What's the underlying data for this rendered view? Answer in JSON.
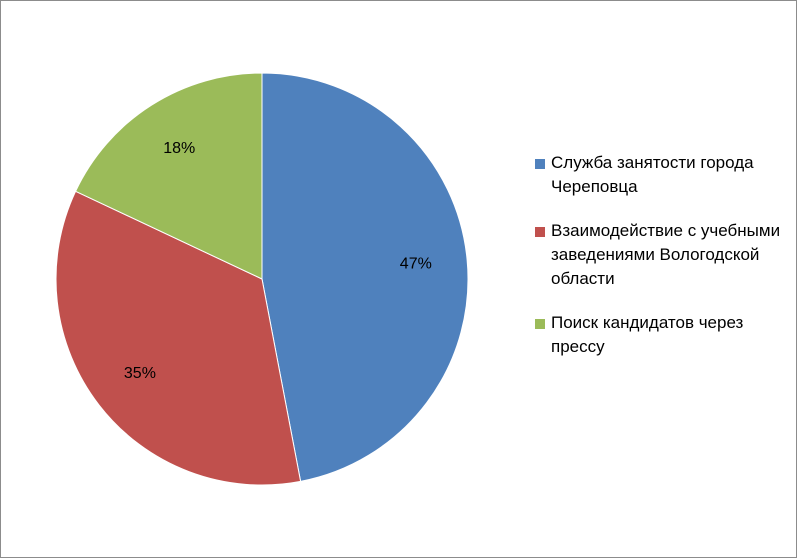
{
  "chart_data": {
    "type": "pie",
    "title": "",
    "categories": [
      "Служба занятости города Череповца",
      "Взаимодействие с учебными заведениями Вологодской области",
      "Поиск кандидатов через прессу"
    ],
    "values": [
      47,
      35,
      18
    ],
    "labels": [
      "47%",
      "35%",
      "18%"
    ],
    "colors": [
      "#4f81bd",
      "#c0504d",
      "#9bbb59"
    ],
    "legend_position": "right",
    "start": "top, clockwise"
  },
  "legend": {
    "items": [
      {
        "label": "Служба занятости города Череповца",
        "color": "#4f81bd"
      },
      {
        "label": "Взаимодействие с учебными заведениями Вологодской области",
        "color": "#c0504d"
      },
      {
        "label": "Поиск кандидатов через прессу",
        "color": "#9bbb59"
      }
    ]
  }
}
